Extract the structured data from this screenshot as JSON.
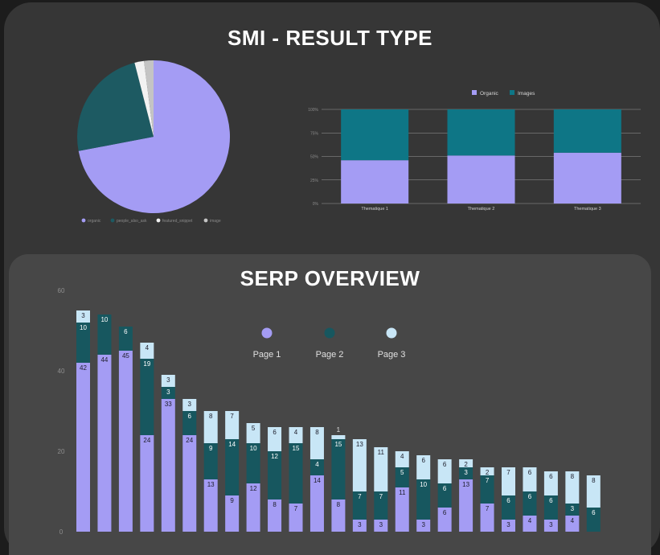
{
  "dashboard": {
    "top_title": "SMI - RESULT TYPE",
    "bottom_title": "SERP OVERVIEW"
  },
  "colors": {
    "page1": "#a49cf4",
    "page2": "#17575f",
    "page3": "#c8e6f6",
    "organic": "#a49cf4",
    "images": "#0e7686",
    "pie_organic": "#a49cf4",
    "pie_dark": "#1d5a62",
    "pie_light": "#f2f2f2",
    "pie_grey": "#c4c4c4"
  },
  "chart_data": [
    {
      "type": "pie",
      "slices": [
        {
          "label": "organic",
          "value": 72
        },
        {
          "label": "people_also_ask",
          "value": 24
        },
        {
          "label": "featured_snippet",
          "value": 2
        },
        {
          "label": "image",
          "value": 2
        }
      ],
      "legend_position": "bottom"
    },
    {
      "type": "bar",
      "stacked": true,
      "normalized": true,
      "categories": [
        "Thematique 1",
        "Thematique 2",
        "Thematique 3"
      ],
      "series": [
        {
          "name": "Organic",
          "values": [
            46,
            51,
            54
          ]
        },
        {
          "name": "Images",
          "values": [
            54,
            49,
            46
          ]
        }
      ],
      "y_ticks": [
        "0%",
        "25%",
        "50%",
        "75%",
        "100%"
      ],
      "ylim": [
        0,
        100
      ],
      "legend_position": "top"
    },
    {
      "type": "bar",
      "stacked": true,
      "title": "SERP OVERVIEW",
      "series": [
        {
          "name": "Page 1",
          "values": [
            42,
            44,
            45,
            24,
            33,
            24,
            13,
            9,
            12,
            8,
            7,
            14,
            8,
            3,
            3,
            11,
            3,
            6,
            13,
            7,
            3,
            4,
            3,
            4,
            0
          ]
        },
        {
          "name": "Page 2",
          "values": [
            10,
            10,
            6,
            19,
            3,
            6,
            9,
            14,
            10,
            12,
            15,
            4,
            15,
            7,
            7,
            5,
            10,
            6,
            3,
            7,
            6,
            6,
            6,
            3,
            6
          ]
        },
        {
          "name": "Page 3",
          "values": [
            3,
            0,
            0,
            4,
            3,
            3,
            8,
            7,
            5,
            6,
            4,
            8,
            1,
            13,
            11,
            4,
            6,
            6,
            2,
            2,
            7,
            6,
            6,
            8,
            8
          ]
        }
      ],
      "y_ticks": [
        "0",
        "20",
        "40",
        "60"
      ],
      "ylim": [
        0,
        60
      ],
      "legend_position": "top-center",
      "grid": false
    }
  ]
}
